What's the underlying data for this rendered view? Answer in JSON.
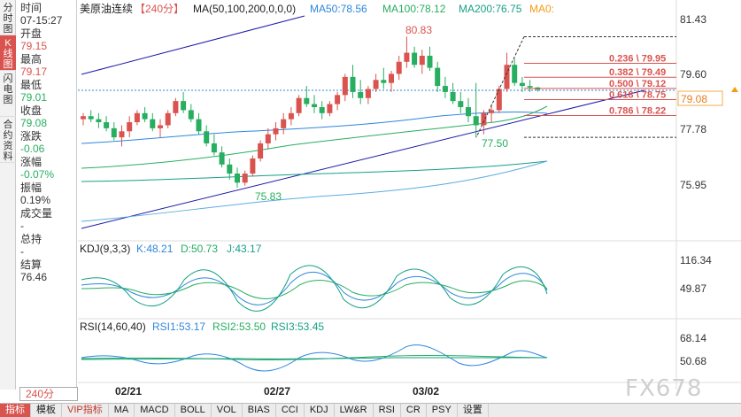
{
  "tabs": {
    "timeshare": "分时图",
    "kline": "K线图",
    "flash": "闪电图",
    "contract": "合约资料"
  },
  "info": {
    "time_label": "时间",
    "time_value": "07-15:27",
    "open_label": "开盘",
    "open_value": "79.15",
    "high_label": "最高",
    "high_value": "79.17",
    "low_label": "最低",
    "low_value": "79.01",
    "close_label": "收盘",
    "close_value": "79.08",
    "change_label": "涨跌",
    "change_value": "-0.06",
    "pct_label": "涨幅",
    "pct_value": "-0.07%",
    "amp_label": "振幅",
    "amp_value": "0.19%",
    "vol_label": "成交量",
    "vol_value": "-",
    "hold_label": "总持",
    "hold_value": "-",
    "settle_label": "结算",
    "settle_value": "76.46"
  },
  "period": "240分",
  "header": {
    "title": "美原油连续",
    "period_tag": "【240分】",
    "ma_title": "MA(50,100,200,0,0,0)",
    "ma50": "MA50:78.56",
    "ma100": "MA100:78.12",
    "ma200": "MA200:76.75",
    "ma0": "MA0:"
  },
  "kdj": {
    "title": "KDJ(9,3,3)",
    "k": "K:48.21",
    "d": "D:50.73",
    "j": "J:43.17"
  },
  "rsi": {
    "title": "RSI(14,60,40)",
    "r1": "RSI1:53.17",
    "r2": "RSI2:53.50",
    "r3": "RSI3:53.45"
  },
  "axes": {
    "main_ticks": [
      "81.43",
      "79.60",
      "77.78",
      "75.95"
    ],
    "current_price": "79.08",
    "kdj_ticks": [
      "116.34",
      "49.87"
    ],
    "rsi_ticks": [
      "68.14",
      "50.68"
    ],
    "dates": [
      "02/21",
      "02/27",
      "03/02"
    ]
  },
  "annotations": {
    "high": "80.83",
    "low1": "75.83",
    "low2": "77.50"
  },
  "fib": [
    {
      "ratio": "0.236",
      "price": "79.95"
    },
    {
      "ratio": "0.382",
      "price": "79.49"
    },
    {
      "ratio": "0.500",
      "price": "79.12"
    },
    {
      "ratio": "0.618",
      "price": "78.75"
    },
    {
      "ratio": "0.786",
      "price": "78.22"
    }
  ],
  "candles": [
    [
      78.1,
      78.3,
      77.9,
      78.2
    ],
    [
      78.2,
      78.4,
      78.0,
      78.1
    ],
    [
      78.1,
      78.3,
      77.8,
      78.0
    ],
    [
      78.0,
      78.2,
      77.7,
      77.8
    ],
    [
      77.8,
      78.0,
      77.4,
      77.5
    ],
    [
      77.5,
      77.9,
      77.2,
      77.7
    ],
    [
      77.7,
      78.2,
      77.5,
      78.0
    ],
    [
      78.0,
      78.4,
      77.9,
      78.3
    ],
    [
      78.3,
      78.5,
      78.0,
      78.1
    ],
    [
      78.1,
      78.3,
      77.7,
      77.8
    ],
    [
      77.8,
      78.1,
      77.5,
      77.9
    ],
    [
      77.9,
      78.4,
      77.8,
      78.3
    ],
    [
      78.3,
      78.8,
      78.2,
      78.7
    ],
    [
      78.7,
      79.0,
      78.3,
      78.4
    ],
    [
      78.4,
      78.6,
      78.0,
      78.1
    ],
    [
      78.1,
      78.3,
      77.6,
      77.7
    ],
    [
      77.7,
      77.9,
      77.2,
      77.3
    ],
    [
      77.3,
      77.6,
      76.9,
      77.0
    ],
    [
      77.0,
      77.2,
      76.5,
      76.6
    ],
    [
      76.6,
      76.8,
      76.1,
      76.3
    ],
    [
      76.3,
      76.5,
      75.83,
      76.0
    ],
    [
      76.0,
      76.4,
      75.9,
      76.3
    ],
    [
      76.3,
      76.9,
      76.2,
      76.8
    ],
    [
      76.8,
      77.4,
      76.7,
      77.3
    ],
    [
      77.3,
      77.8,
      77.1,
      77.6
    ],
    [
      77.6,
      78.0,
      77.4,
      77.8
    ],
    [
      77.8,
      78.3,
      77.6,
      78.1
    ],
    [
      78.1,
      78.5,
      77.9,
      78.3
    ],
    [
      78.3,
      78.9,
      78.2,
      78.8
    ],
    [
      78.8,
      79.2,
      78.5,
      78.6
    ],
    [
      78.6,
      78.9,
      78.3,
      78.5
    ],
    [
      78.5,
      78.7,
      78.1,
      78.3
    ],
    [
      78.3,
      78.7,
      78.2,
      78.6
    ],
    [
      78.6,
      79.0,
      78.4,
      78.9
    ],
    [
      78.9,
      79.6,
      78.7,
      79.5
    ],
    [
      79.5,
      79.9,
      78.8,
      79.0
    ],
    [
      79.0,
      79.4,
      78.6,
      78.8
    ],
    [
      78.8,
      79.2,
      78.6,
      79.1
    ],
    [
      79.1,
      79.6,
      79.0,
      79.4
    ],
    [
      79.4,
      79.8,
      79.1,
      79.3
    ],
    [
      79.3,
      79.7,
      79.0,
      79.6
    ],
    [
      79.6,
      80.2,
      79.4,
      80.0
    ],
    [
      80.0,
      80.83,
      79.8,
      80.3
    ],
    [
      80.3,
      80.5,
      79.8,
      79.9
    ],
    [
      79.9,
      80.4,
      79.6,
      80.2
    ],
    [
      80.2,
      80.5,
      79.7,
      79.8
    ],
    [
      79.8,
      80.0,
      79.0,
      79.2
    ],
    [
      79.2,
      79.5,
      78.8,
      79.0
    ],
    [
      79.0,
      79.3,
      78.6,
      78.7
    ],
    [
      78.7,
      79.0,
      78.3,
      78.5
    ],
    [
      78.5,
      78.8,
      78.0,
      78.2
    ],
    [
      78.2,
      79.3,
      77.5,
      77.9
    ],
    [
      77.9,
      78.4,
      77.6,
      78.3
    ],
    [
      78.3,
      78.6,
      78.0,
      78.4
    ],
    [
      78.4,
      79.2,
      78.3,
      79.1
    ],
    [
      79.1,
      80.3,
      79.0,
      79.9
    ],
    [
      79.9,
      80.1,
      79.2,
      79.3
    ],
    [
      79.3,
      79.5,
      79.0,
      79.2
    ],
    [
      79.2,
      79.4,
      79.0,
      79.15
    ],
    [
      79.15,
      79.17,
      79.01,
      79.08
    ]
  ]
}
